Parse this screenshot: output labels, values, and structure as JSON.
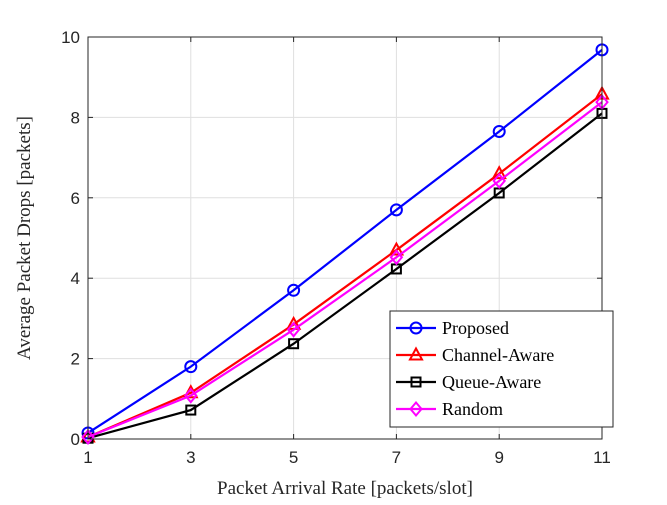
{
  "chart_data": {
    "type": "line",
    "xlabel": "Packet Arrival Rate [packets/slot]",
    "ylabel": "Average Packet Drops [packets]",
    "x": [
      1,
      3,
      5,
      7,
      9,
      11
    ],
    "xlim": [
      1,
      11
    ],
    "ylim": [
      0,
      10
    ],
    "xticks": [
      "1",
      "3",
      "5",
      "7",
      "9",
      "11"
    ],
    "yticks": [
      "0",
      "2",
      "4",
      "6",
      "8",
      "10"
    ],
    "grid": true,
    "legend_position": "bottom-right",
    "series": [
      {
        "name": "Proposed",
        "color": "#0000ff",
        "marker": "circle",
        "values": [
          0.15,
          1.8,
          3.7,
          5.7,
          7.65,
          9.68
        ]
      },
      {
        "name": "Channel-Aware",
        "color": "#ff0000",
        "marker": "triangle",
        "values": [
          0.05,
          1.15,
          2.85,
          4.7,
          6.6,
          8.58
        ]
      },
      {
        "name": "Queue-Aware",
        "color": "#000000",
        "marker": "square",
        "values": [
          0.02,
          0.72,
          2.37,
          4.23,
          6.12,
          8.1
        ]
      },
      {
        "name": "Random",
        "color": "#ff00ff",
        "marker": "diamond",
        "values": [
          0.05,
          1.08,
          2.72,
          4.52,
          6.42,
          8.38
        ]
      }
    ]
  }
}
